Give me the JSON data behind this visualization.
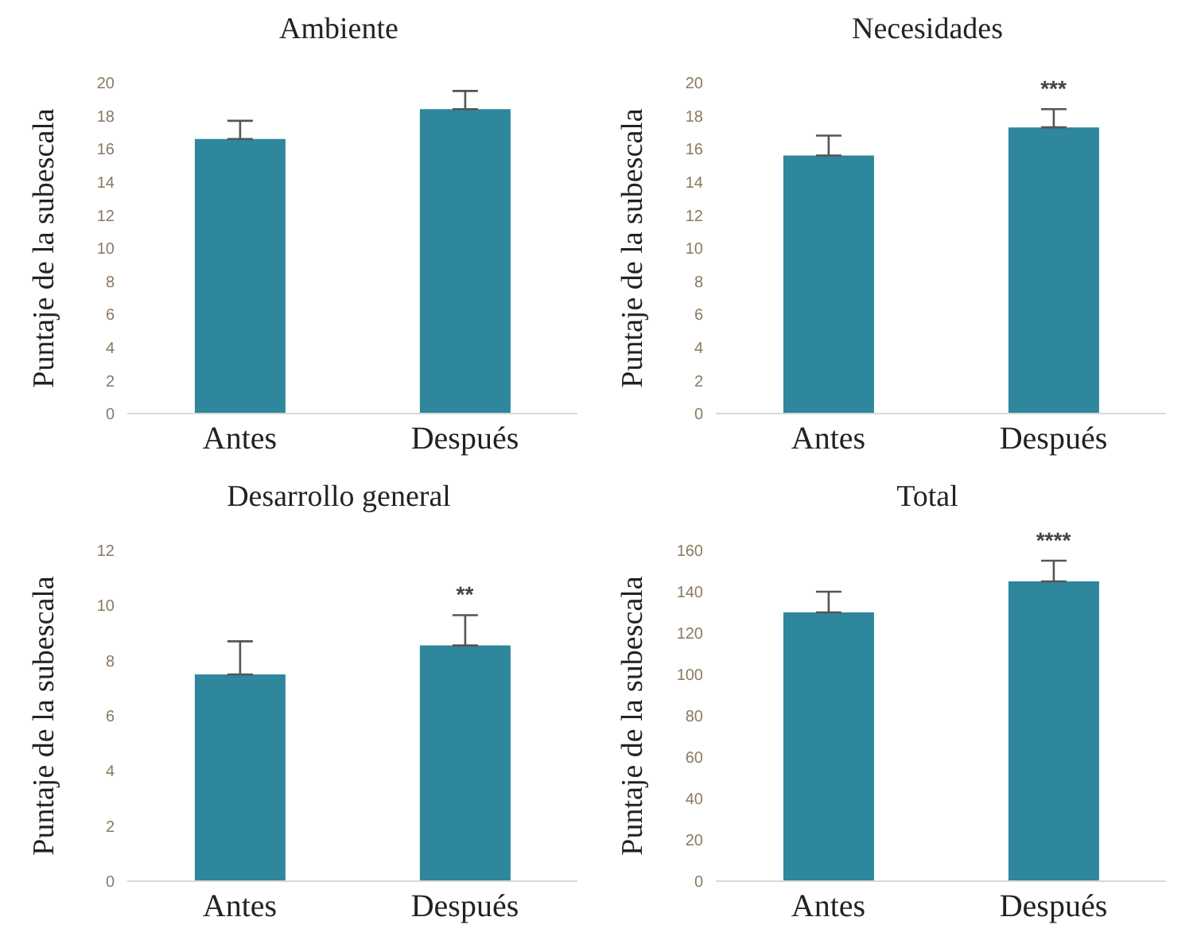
{
  "chart_data": [
    {
      "type": "bar",
      "title": "Ambiente",
      "ylabel": "Puntaje de la subescala",
      "categories": [
        "Antes",
        "Después"
      ],
      "values": [
        16.6,
        18.4
      ],
      "errors": [
        [
          16.6,
          17.7
        ],
        [
          18.4,
          19.5
        ]
      ],
      "color": "#2e879c",
      "ylim": [
        0,
        20
      ],
      "yticks": [
        0,
        2,
        4,
        6,
        8,
        10,
        12,
        14,
        16,
        18,
        20
      ]
    },
    {
      "type": "bar",
      "title": "Necesidades",
      "ylabel": "Puntaje de la subescala",
      "categories": [
        "Antes",
        "Después"
      ],
      "values": [
        15.6,
        17.3
      ],
      "errors": [
        [
          15.6,
          16.8
        ],
        [
          17.3,
          18.4
        ]
      ],
      "color": "#2e879c",
      "ylim": [
        0,
        20
      ],
      "yticks": [
        0,
        2,
        4,
        6,
        8,
        10,
        12,
        14,
        16,
        18,
        20
      ],
      "annotations": [
        "***"
      ]
    },
    {
      "type": "bar",
      "title": "Desarrollo general",
      "ylabel": "Puntaje de la subescala",
      "categories": [
        "Antes",
        "Después"
      ],
      "values": [
        7.5,
        8.55
      ],
      "errors": [
        [
          7.5,
          8.7
        ],
        [
          8.55,
          9.65
        ]
      ],
      "color": "#2e879c",
      "ylim": [
        0,
        12
      ],
      "yticks": [
        0,
        2,
        4,
        6,
        8,
        10,
        12
      ],
      "annotations": [
        "**"
      ]
    },
    {
      "type": "bar",
      "title": "Total",
      "ylabel": "Puntaje de la subescala",
      "categories": [
        "Antes",
        "Después"
      ],
      "values": [
        130,
        145
      ],
      "errors": [
        [
          130,
          140
        ],
        [
          145,
          155
        ]
      ],
      "color": "#2e879c",
      "ylim": [
        0,
        160
      ],
      "yticks": [
        0,
        20,
        40,
        60,
        80,
        100,
        120,
        140,
        160
      ],
      "annotations": [
        "****"
      ]
    }
  ]
}
